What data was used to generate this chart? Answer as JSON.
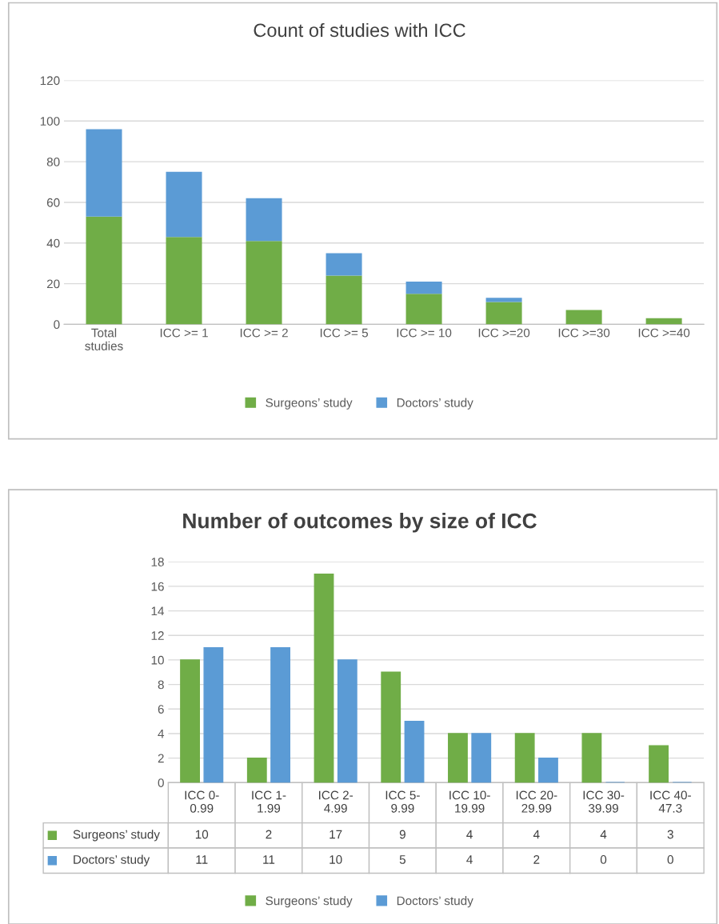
{
  "chart_data": [
    {
      "type": "bar",
      "title": "Count of studies with ICC",
      "stacked": true,
      "categories": [
        "Total studies",
        "ICC >= 1",
        "ICC >= 2",
        "ICC >= 5",
        "ICC >= 10",
        "ICC >=20",
        "ICC >=30",
        "ICC >=40"
      ],
      "series": [
        {
          "name": "Surgeons’ study",
          "color": "#70ad47",
          "values": [
            53,
            43,
            41,
            24,
            15,
            11,
            7,
            3
          ]
        },
        {
          "name": "Doctors’ study",
          "color": "#5b9bd5",
          "values": [
            43,
            32,
            21,
            11,
            6,
            2,
            0,
            0
          ]
        }
      ],
      "ylim": [
        0,
        120
      ],
      "yticks": [
        0,
        20,
        40,
        60,
        80,
        100,
        120
      ],
      "grid": "y",
      "legend": "bottom"
    },
    {
      "type": "bar",
      "title": "Number of outcomes by size of ICC",
      "categories": [
        "ICC 0-0.99",
        "ICC 1-1.99",
        "ICC 2-4.99",
        "ICC 5-9.99",
        "ICC 10-19.99",
        "ICC 20-29.99",
        "ICC 30-39.99",
        "ICC 40-47.3"
      ],
      "series": [
        {
          "name": "Surgeons’ study",
          "color": "#70ad47",
          "values": [
            10,
            2,
            17,
            9,
            4,
            4,
            4,
            3
          ]
        },
        {
          "name": "Doctors’ study",
          "color": "#5b9bd5",
          "values": [
            11,
            11,
            10,
            5,
            4,
            2,
            0,
            0
          ]
        }
      ],
      "ylim": [
        0,
        18
      ],
      "yticks": [
        0,
        2,
        4,
        6,
        8,
        10,
        12,
        14,
        16,
        18
      ],
      "grid": "y",
      "legend": "bottom",
      "data_labels": true,
      "tick_labels": "y"
    }
  ]
}
